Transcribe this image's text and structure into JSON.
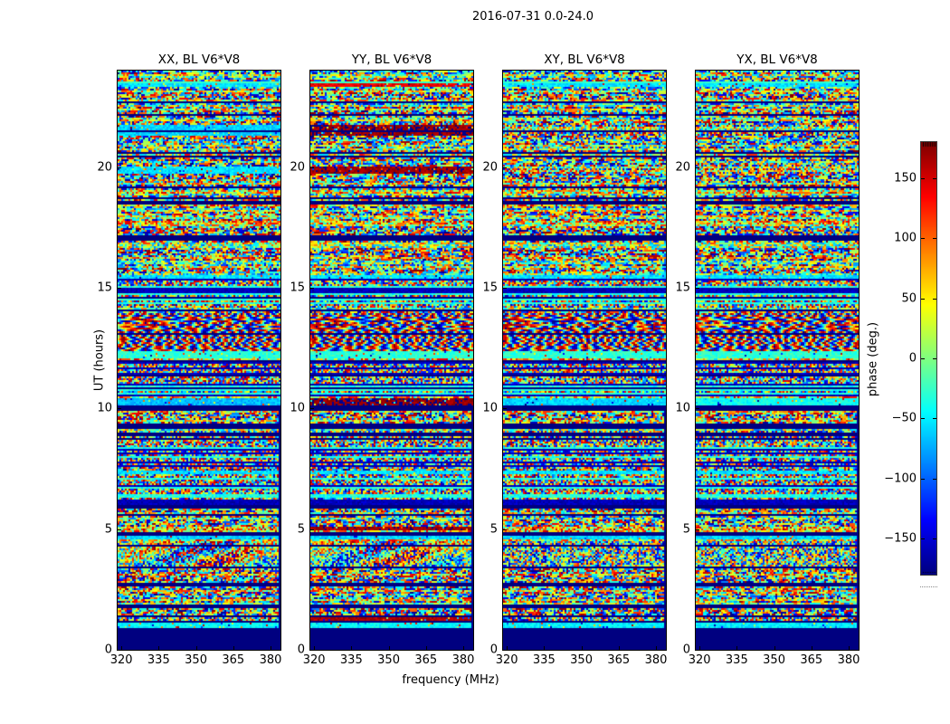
{
  "chart_data": {
    "type": "heatmap",
    "suptitle": "2016-07-31 0.0-24.0",
    "xlabel": "frequency (MHz)",
    "ylabel": "UT (hours)",
    "x_range": [
      318.5,
      384.0
    ],
    "x_ticks": [
      320,
      335,
      350,
      365,
      380
    ],
    "y_range": [
      0,
      24
    ],
    "y_ticks": [
      0,
      5,
      10,
      15,
      20
    ],
    "panels": [
      {
        "key": "XX",
        "title": "XX, BL V6*V8"
      },
      {
        "key": "YY",
        "title": "YY, BL V6*V8"
      },
      {
        "key": "XY",
        "title": "XY, BL V6*V8"
      },
      {
        "key": "YX",
        "title": "YX, BL V6*V8"
      }
    ],
    "colorbar": {
      "label": "phase (deg.)",
      "ticks": [
        150,
        100,
        50,
        0,
        -50,
        -100,
        -150
      ],
      "range": [
        -180,
        180
      ],
      "colormap": "jet"
    },
    "colors": {
      "flag_navy": "#000080",
      "background": "#ffffff",
      "spine": "#000000"
    },
    "features": [
      {
        "hours": [
          0.0,
          0.92
        ],
        "kind": "flag",
        "note": "solid flagged band at start of day"
      },
      {
        "hours": [
          0.92,
          1.15
        ],
        "kind": "smooth",
        "values": {
          "XX": -45,
          "YY": -45,
          "XY": -50,
          "YX": -50
        },
        "note": "smooth green-cyan band"
      },
      {
        "hours": [
          1.18,
          1.4
        ],
        "kind": "smooth",
        "values": {
          "YY": 165
        },
        "note": "red band in YY"
      },
      {
        "hours": [
          1.75,
          1.87
        ],
        "kind": "flag"
      },
      {
        "hours": [
          2.65,
          2.78
        ],
        "kind": "flag"
      },
      {
        "hours": [
          3.4,
          4.5
        ],
        "kind": "blob",
        "panels": [
          "XX",
          "YY"
        ],
        "note": "saturated blotchy region in XX/YY"
      },
      {
        "hours": [
          4.55,
          4.75
        ],
        "kind": "smooth",
        "values": {
          "XX": -60,
          "YY": -60,
          "XY": -60,
          "YX": -60
        }
      },
      {
        "hours": [
          4.75,
          4.86
        ],
        "kind": "flag"
      },
      {
        "hours": [
          4.95,
          5.1
        ],
        "kind": "smooth",
        "values": {
          "YY": 170
        },
        "note": "red line in YY at 5h"
      },
      {
        "hours": [
          5.85,
          5.98
        ],
        "kind": "flag"
      },
      {
        "hours": [
          6.0,
          7.25
        ],
        "kind": "striped"
      },
      {
        "hours": [
          7.3,
          7.45
        ],
        "kind": "smooth",
        "values": {
          "XX": -55,
          "YY": -55,
          "XY": -55,
          "YX": -55
        }
      },
      {
        "hours": [
          7.5,
          9.1
        ],
        "kind": "striped"
      },
      {
        "hours": [
          9.15,
          9.4
        ],
        "kind": "flag"
      },
      {
        "hours": [
          9.9,
          10.12
        ],
        "kind": "flag"
      },
      {
        "hours": [
          10.15,
          10.45
        ],
        "kind": "smooth",
        "values": {
          "XX": -70,
          "YY": 175,
          "XY": -60,
          "YX": -40
        }
      },
      {
        "hours": [
          10.5,
          12.0
        ],
        "kind": "striped"
      },
      {
        "hours": [
          12.05,
          12.35
        ],
        "kind": "smooth",
        "values": {
          "XX": -30,
          "YY": -30,
          "XY": -30,
          "YX": -30
        }
      },
      {
        "hours": [
          12.4,
          13.95
        ],
        "kind": "fringe",
        "note": "wavy interference fringes"
      },
      {
        "hours": [
          14.0,
          14.12
        ],
        "kind": "flag"
      },
      {
        "hours": [
          14.15,
          15.35
        ],
        "kind": "striped"
      },
      {
        "hours": [
          15.4,
          15.55
        ],
        "kind": "smooth",
        "values": {
          "XX": -55,
          "YY": -55,
          "XY": -55,
          "YX": -55
        }
      },
      {
        "hours": [
          16.95,
          17.15
        ],
        "kind": "flag"
      },
      {
        "hours": [
          18.45,
          18.6
        ],
        "kind": "flag"
      },
      {
        "hours": [
          19.7,
          20.05
        ],
        "kind": "smooth",
        "values": {
          "XX": -55,
          "YY": 170
        }
      },
      {
        "hours": [
          21.3,
          21.75
        ],
        "kind": "smooth",
        "values": {
          "XX": -60,
          "YY": 172
        }
      },
      {
        "hours": [
          22.1,
          22.22
        ],
        "kind": "flag"
      },
      {
        "hours": [
          23.35,
          23.5
        ],
        "kind": "smooth",
        "values": {
          "XX": -55,
          "YY": 140,
          "XY": -55,
          "YX": -55
        }
      }
    ]
  }
}
